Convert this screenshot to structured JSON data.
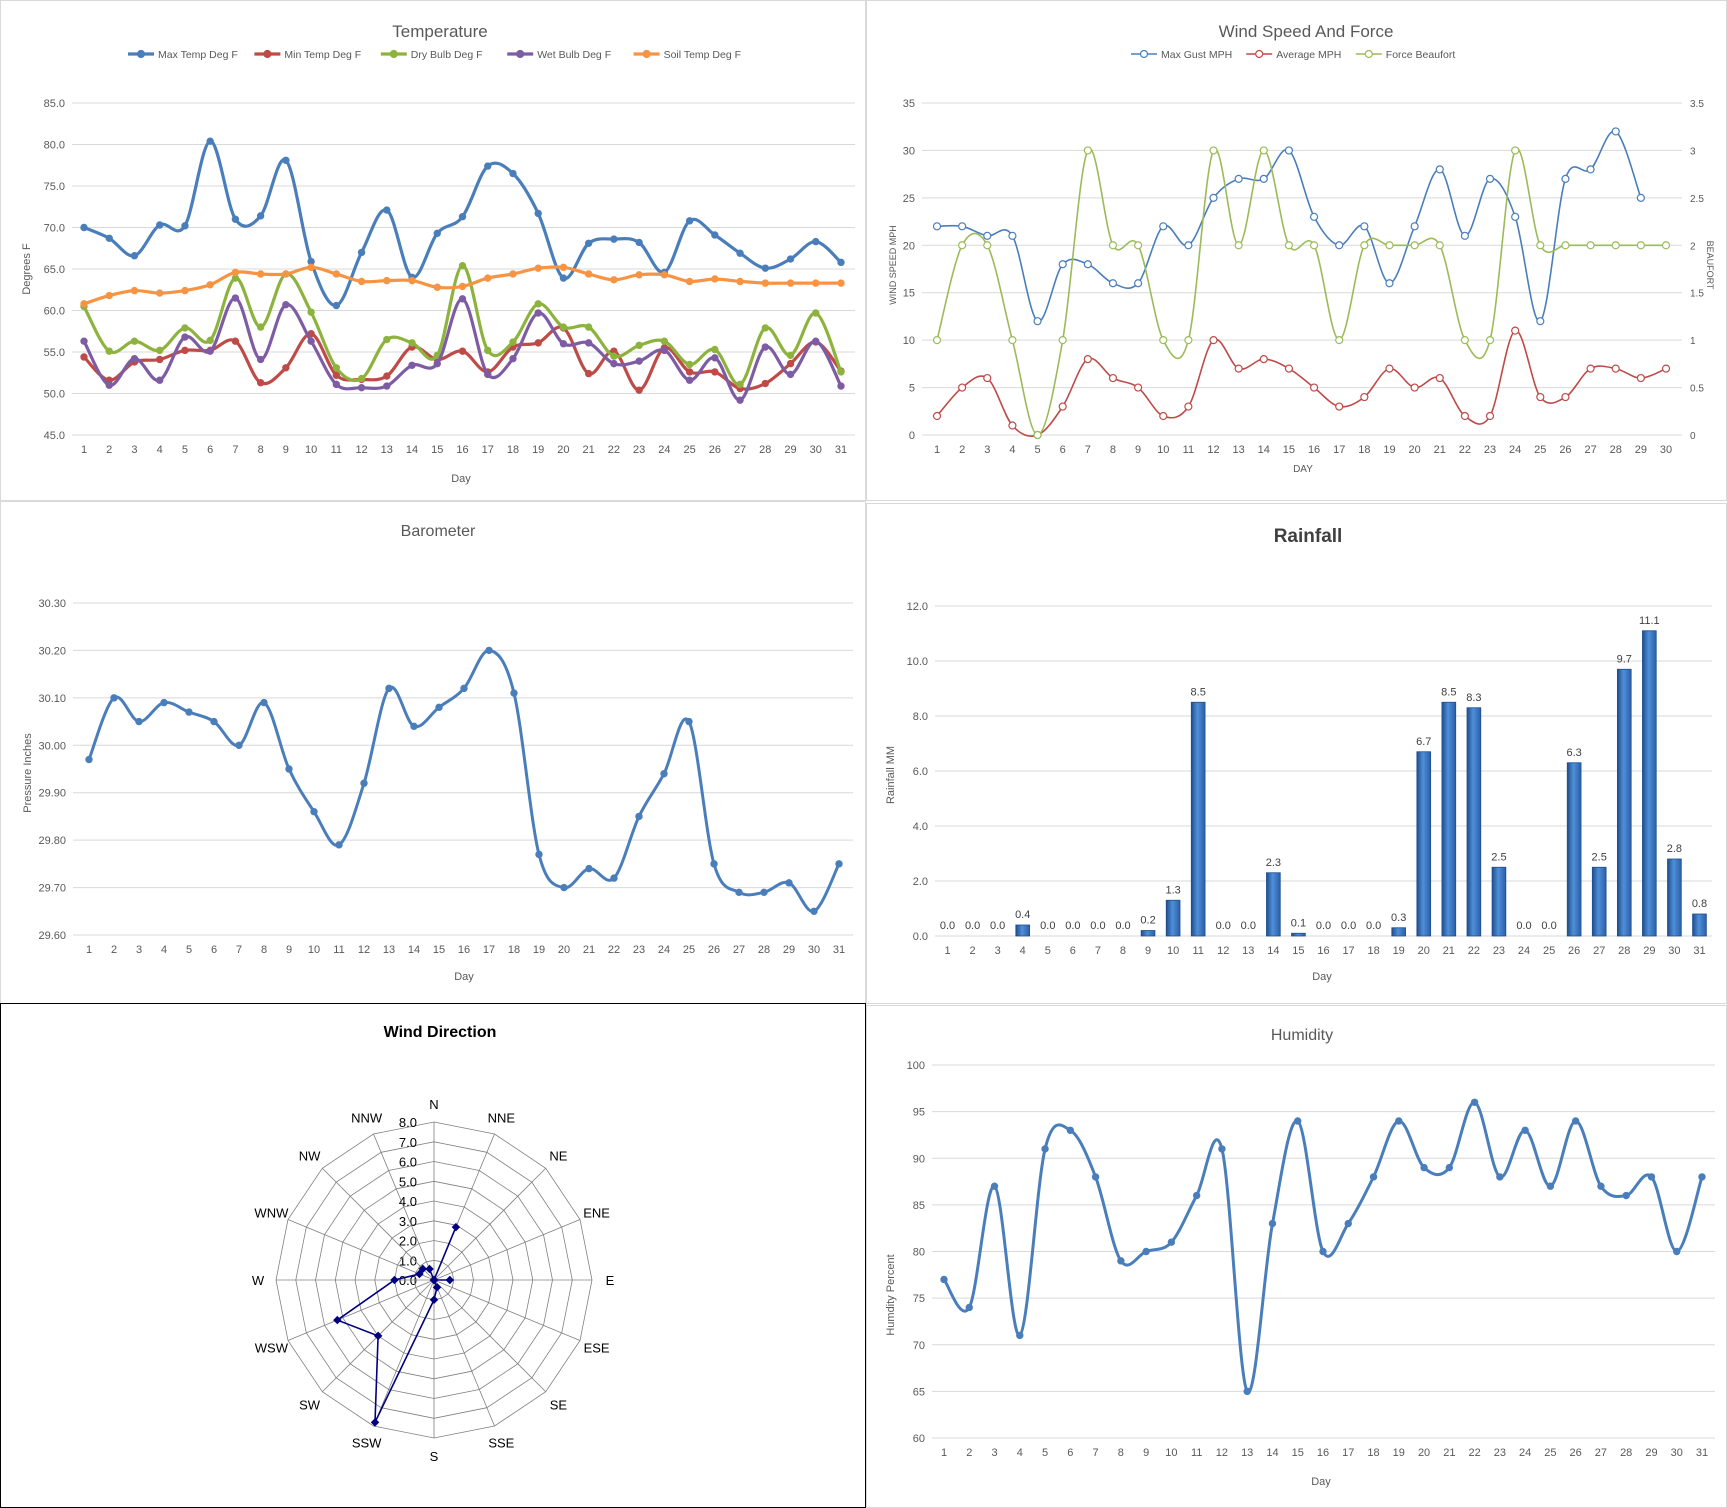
{
  "chart_data": [
    {
      "id": "temperature",
      "type": "line",
      "title": "Temperature",
      "xlabel": "Day",
      "ylabel": "Degrees F",
      "ylim": [
        45,
        85
      ],
      "yticks": [
        "45.0",
        "50.0",
        "55.0",
        "60.0",
        "65.0",
        "70.0",
        "75.0",
        "80.0",
        "85.0"
      ],
      "categories": [
        "1",
        "2",
        "3",
        "4",
        "5",
        "6",
        "7",
        "8",
        "9",
        "10",
        "11",
        "12",
        "13",
        "14",
        "15",
        "16",
        "17",
        "18",
        "19",
        "20",
        "21",
        "22",
        "23",
        "24",
        "25",
        "26",
        "27",
        "28",
        "29",
        "30",
        "31"
      ],
      "legend": "top",
      "grid": true,
      "series": [
        {
          "name": "Max Temp Deg F",
          "color": "#4a7ebb",
          "values": [
            70.0,
            68.7,
            66.6,
            70.3,
            70.2,
            80.4,
            71.0,
            71.4,
            78.1,
            65.9,
            60.6,
            67.0,
            72.1,
            64.0,
            69.3,
            71.3,
            77.4,
            76.5,
            71.7,
            63.9,
            68.1,
            68.6,
            68.2,
            64.6,
            70.8,
            69.1,
            66.9,
            65.1,
            66.2,
            68.3,
            65.8
          ]
        },
        {
          "name": "Min Temp Deg F",
          "color": "#be4b48",
          "values": [
            54.4,
            51.6,
            53.8,
            54.1,
            55.2,
            55.2,
            56.3,
            51.3,
            53.1,
            57.2,
            52.2,
            51.7,
            52.1,
            55.6,
            54.1,
            55.1,
            52.6,
            55.6,
            56.1,
            57.9,
            52.4,
            55.1,
            50.4,
            55.5,
            52.6,
            52.6,
            50.6,
            51.2,
            53.6,
            56.2,
            52.7
          ]
        },
        {
          "name": "Dry Bulb Deg F",
          "color": "#8db33e",
          "values": [
            60.5,
            55.1,
            56.3,
            55.2,
            57.9,
            56.4,
            63.9,
            58.0,
            64.4,
            59.8,
            53.1,
            51.8,
            56.5,
            56.1,
            54.6,
            65.4,
            55.2,
            56.2,
            60.8,
            58.0,
            58.0,
            54.5,
            55.8,
            56.3,
            53.5,
            55.3,
            51.1,
            57.9,
            54.6,
            59.7,
            52.6
          ]
        },
        {
          "name": "Wet Bulb Deg F",
          "color": "#7e5ca4",
          "values": [
            56.3,
            51.0,
            54.2,
            51.6,
            56.8,
            55.1,
            61.5,
            54.1,
            60.7,
            56.3,
            51.1,
            50.7,
            50.9,
            53.4,
            53.6,
            61.4,
            52.3,
            54.2,
            59.7,
            56.0,
            56.1,
            53.6,
            53.9,
            55.2,
            51.6,
            54.3,
            49.2,
            55.6,
            52.3,
            56.3,
            50.9
          ]
        },
        {
          "name": "Soil Temp Deg F",
          "color": "#f69444",
          "values": [
            60.8,
            61.8,
            62.4,
            62.1,
            62.4,
            63.1,
            64.6,
            64.4,
            64.4,
            65.2,
            64.4,
            63.5,
            63.6,
            63.6,
            62.8,
            62.9,
            63.9,
            64.4,
            65.1,
            65.2,
            64.4,
            63.7,
            64.3,
            64.3,
            63.5,
            63.8,
            63.5,
            63.3,
            63.3,
            63.3,
            63.3
          ]
        }
      ]
    },
    {
      "id": "wind",
      "type": "line",
      "title": "Wind Speed And Force",
      "xlabel": "DAY",
      "ylabel": "WIND SPEED MPH",
      "y2label": "BEAUFORT",
      "ylim": [
        0,
        35
      ],
      "y2lim": [
        0,
        3.5
      ],
      "yticks": [
        "0",
        "5",
        "10",
        "15",
        "20",
        "25",
        "30",
        "35"
      ],
      "y2ticks": [
        "0",
        "0.5",
        "1",
        "1.5",
        "2",
        "2.5",
        "3",
        "3.5"
      ],
      "categories": [
        "1",
        "2",
        "3",
        "4",
        "5",
        "6",
        "7",
        "8",
        "9",
        "10",
        "11",
        "12",
        "13",
        "14",
        "15",
        "16",
        "17",
        "18",
        "19",
        "20",
        "21",
        "22",
        "23",
        "24",
        "25",
        "26",
        "27",
        "28",
        "29",
        "30"
      ],
      "legend": "top",
      "grid": true,
      "series": [
        {
          "name": "Max Gust MPH",
          "color": "#4a7ebb",
          "axis": "left",
          "values": [
            22,
            22,
            21,
            21,
            12,
            18,
            18,
            16,
            16,
            22,
            20,
            25,
            27,
            27,
            30,
            23,
            20,
            22,
            16,
            22,
            28,
            21,
            27,
            23,
            12,
            27,
            28,
            32,
            25,
            null
          ]
        },
        {
          "name": "Average MPH",
          "color": "#be4b48",
          "axis": "left",
          "values": [
            2,
            5,
            6,
            1,
            0,
            3,
            8,
            6,
            5,
            2,
            3,
            10,
            7,
            8,
            7,
            5,
            3,
            4,
            7,
            5,
            6,
            2,
            2,
            11,
            4,
            4,
            7,
            7,
            6,
            7
          ]
        },
        {
          "name": "Force Beaufort",
          "color": "#9bbb59",
          "axis": "right",
          "values": [
            1,
            2,
            2,
            1,
            0,
            1,
            3,
            2,
            2,
            1,
            1,
            3,
            2,
            3,
            2,
            2,
            1,
            2,
            2,
            2,
            2,
            1,
            1,
            3,
            2,
            2,
            2,
            2,
            2,
            2
          ]
        }
      ]
    },
    {
      "id": "barometer",
      "type": "line",
      "title": "Barometer",
      "xlabel": "Day",
      "ylabel": "Pressure Inches",
      "ylim": [
        29.6,
        30.3
      ],
      "yticks": [
        "29.60",
        "29.70",
        "29.80",
        "29.90",
        "30.00",
        "30.10",
        "30.20",
        "30.30"
      ],
      "categories": [
        "1",
        "2",
        "3",
        "4",
        "5",
        "6",
        "7",
        "8",
        "9",
        "10",
        "11",
        "12",
        "13",
        "14",
        "15",
        "16",
        "17",
        "18",
        "19",
        "20",
        "21",
        "22",
        "23",
        "24",
        "25",
        "26",
        "27",
        "28",
        "29",
        "30",
        "31"
      ],
      "grid": true,
      "series": [
        {
          "name": "",
          "color": "#4a7ebb",
          "values": [
            29.97,
            30.1,
            30.05,
            30.09,
            30.07,
            30.05,
            30.0,
            30.09,
            29.95,
            29.86,
            29.79,
            29.92,
            30.12,
            30.04,
            30.08,
            30.12,
            30.2,
            30.11,
            29.77,
            29.7,
            29.74,
            29.72,
            29.85,
            29.94,
            30.05,
            29.75,
            29.69,
            29.69,
            29.71,
            29.65,
            29.75
          ]
        }
      ]
    },
    {
      "id": "rainfall",
      "type": "bar",
      "title": "Rainfall",
      "xlabel": "Day",
      "ylabel": "Rainfall MM",
      "ylim": [
        0,
        12
      ],
      "yticks": [
        "0.0",
        "2.0",
        "4.0",
        "6.0",
        "8.0",
        "10.0",
        "12.0"
      ],
      "categories": [
        "1",
        "2",
        "3",
        "4",
        "5",
        "6",
        "7",
        "8",
        "9",
        "10",
        "11",
        "12",
        "13",
        "14",
        "15",
        "16",
        "17",
        "18",
        "19",
        "20",
        "21",
        "22",
        "23",
        "24",
        "25",
        "26",
        "27",
        "28",
        "29",
        "30",
        "31"
      ],
      "grid": true,
      "values": [
        0.0,
        0.0,
        0.0,
        0.4,
        0.0,
        0.0,
        0.0,
        0.0,
        0.2,
        1.3,
        8.5,
        0.0,
        0.0,
        2.3,
        0.1,
        0.0,
        0.0,
        0.0,
        0.3,
        6.7,
        8.5,
        8.3,
        2.5,
        0.0,
        0.0,
        6.3,
        2.5,
        9.7,
        11.1,
        2.8,
        0.8
      ],
      "labels": [
        "0.0",
        "0.0",
        "0.0",
        "0.4",
        "0.0",
        "0.0",
        "0.0",
        "0.0",
        "0.2",
        "1.3",
        "8.5",
        "0.0",
        "0.0",
        "2.3",
        "0.1",
        "0.0",
        "0.0",
        "0.0",
        "0.3",
        "6.7",
        "8.5",
        "8.3",
        "2.5",
        "0.0",
        "0.0",
        "6.3",
        "2.5",
        "9.7",
        "11.1",
        "2.8",
        "0.8"
      ],
      "color": "#2e66b0"
    },
    {
      "id": "winddir",
      "type": "radar",
      "title": "Wind Direction",
      "rlim": [
        0,
        8
      ],
      "rticks": [
        "0.0",
        "1.0",
        "2.0",
        "3.0",
        "4.0",
        "5.0",
        "6.0",
        "7.0",
        "8.0"
      ],
      "categories": [
        "N",
        "NNE",
        "NE",
        "ENE",
        "E",
        "ESE",
        "SE",
        "SSE",
        "S",
        "SSW",
        "SW",
        "WSW",
        "W",
        "WNW",
        "NW",
        "NNW"
      ],
      "values": [
        0,
        2.9,
        0,
        0,
        0.8,
        0,
        0,
        0.4,
        1.0,
        7.8,
        4.0,
        5.3,
        2.0,
        0.8,
        0.8,
        0.6
      ],
      "color": "#000080"
    },
    {
      "id": "humidity",
      "type": "line",
      "title": "Humidity",
      "xlabel": "Day",
      "ylabel": "Humdity Percent",
      "ylim": [
        60,
        100
      ],
      "yticks": [
        "60",
        "65",
        "70",
        "75",
        "80",
        "85",
        "90",
        "95",
        "100"
      ],
      "categories": [
        "1",
        "2",
        "3",
        "4",
        "5",
        "6",
        "7",
        "8",
        "9",
        "10",
        "11",
        "12",
        "13",
        "14",
        "15",
        "16",
        "17",
        "18",
        "19",
        "20",
        "21",
        "22",
        "23",
        "24",
        "25",
        "26",
        "27",
        "28",
        "29",
        "30",
        "31"
      ],
      "grid": true,
      "series": [
        {
          "name": "",
          "color": "#4a7ebb",
          "values": [
            77,
            74,
            87,
            71,
            91,
            93,
            88,
            79,
            80,
            81,
            86,
            91,
            65,
            83,
            94,
            80,
            83,
            88,
            94,
            89,
            89,
            96,
            88,
            93,
            87,
            94,
            87,
            86,
            88,
            80,
            88
          ]
        }
      ]
    }
  ]
}
